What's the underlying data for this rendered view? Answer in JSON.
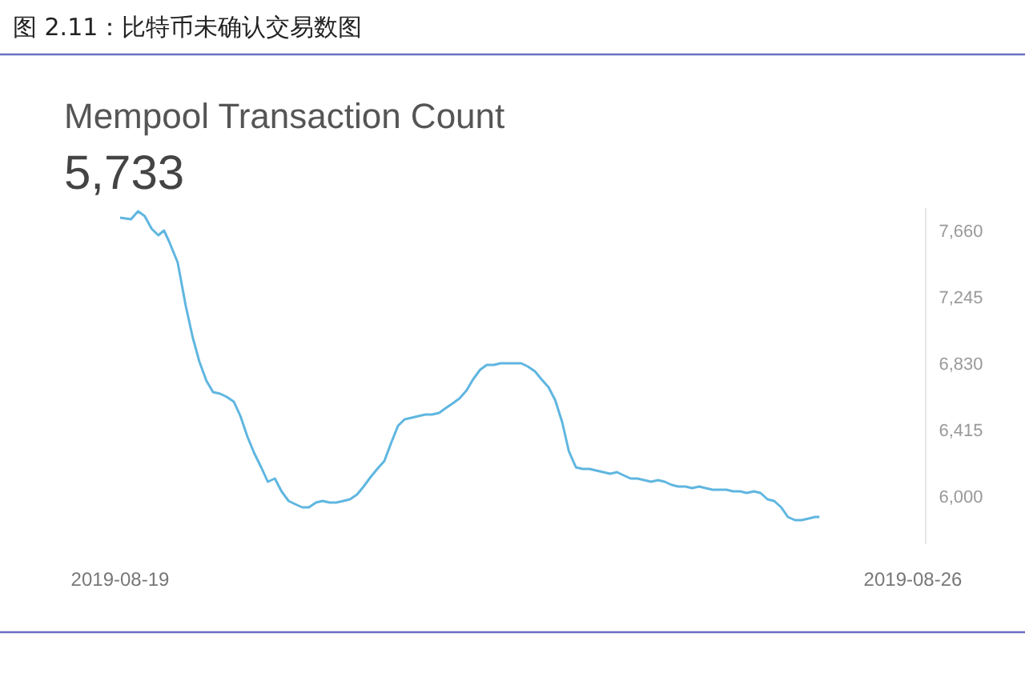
{
  "chart_data": {
    "type": "line",
    "title": "图 2.11：比特币未确认交易数图",
    "subtitle": "Mempool Transaction Count",
    "annotations": [
      "5,733"
    ],
    "xlim": [
      "2019-08-19",
      "2019-08-26"
    ],
    "xticks": [
      "2019-08-19",
      "2019-08-26"
    ],
    "ylim": [
      5700,
      7800
    ],
    "yticks": [
      {
        "value": 6000,
        "label": "6,000"
      },
      {
        "value": 6415,
        "label": "6,415"
      },
      {
        "value": 6830,
        "label": "6,830"
      },
      {
        "value": 7245,
        "label": "7,245"
      },
      {
        "value": 7660,
        "label": "7,660"
      }
    ],
    "grid": false,
    "series": [
      {
        "color": "#5fb6e0",
        "x": [
          "2019-08-19T00:00",
          "2019-08-19T02:18",
          "2019-08-19T03:48",
          "2019-08-19T05:12",
          "2019-08-19T06:42",
          "2019-08-19T08:06",
          "2019-08-19T09:18",
          "2019-08-19T10:24",
          "2019-08-19T12:12",
          "2019-08-19T13:54",
          "2019-08-19T15:24",
          "2019-08-19T16:48",
          "2019-08-19T18:18",
          "2019-08-19T19:42",
          "2019-08-19T21:12",
          "2019-08-19T22:36",
          "2019-08-20T00:06",
          "2019-08-20T01:30",
          "2019-08-20T03:00",
          "2019-08-20T04:24",
          "2019-08-20T05:54",
          "2019-08-20T07:18",
          "2019-08-20T08:48",
          "2019-08-20T10:12",
          "2019-08-20T11:42",
          "2019-08-20T13:06",
          "2019-08-20T14:36",
          "2019-08-20T16:00",
          "2019-08-20T17:30",
          "2019-08-20T18:54",
          "2019-08-20T20:24",
          "2019-08-20T21:48",
          "2019-08-20T23:18",
          "2019-08-21T00:42",
          "2019-08-21T02:12",
          "2019-08-21T03:36",
          "2019-08-21T05:06",
          "2019-08-21T06:30",
          "2019-08-21T08:00",
          "2019-08-21T09:24",
          "2019-08-21T10:54",
          "2019-08-21T12:18",
          "2019-08-21T13:48",
          "2019-08-21T15:12",
          "2019-08-21T16:42",
          "2019-08-21T18:06",
          "2019-08-21T19:36",
          "2019-08-21T21:00",
          "2019-08-21T22:30",
          "2019-08-21T23:54",
          "2019-08-22T01:24",
          "2019-08-22T02:48",
          "2019-08-22T04:18",
          "2019-08-22T05:42",
          "2019-08-22T07:12",
          "2019-08-22T08:36",
          "2019-08-22T10:06",
          "2019-08-22T11:30",
          "2019-08-22T13:00",
          "2019-08-22T14:24",
          "2019-08-22T15:54",
          "2019-08-22T17:18",
          "2019-08-22T18:48",
          "2019-08-22T20:12",
          "2019-08-22T21:42",
          "2019-08-22T23:06",
          "2019-08-23T00:36",
          "2019-08-23T02:00",
          "2019-08-23T03:30",
          "2019-08-23T04:54",
          "2019-08-23T06:24",
          "2019-08-23T07:48",
          "2019-08-23T09:18",
          "2019-08-23T10:42",
          "2019-08-23T12:12",
          "2019-08-23T13:36",
          "2019-08-23T15:06",
          "2019-08-23T16:30",
          "2019-08-23T18:00",
          "2019-08-23T19:24",
          "2019-08-23T20:54",
          "2019-08-23T22:18",
          "2019-08-23T23:48",
          "2019-08-24T01:12",
          "2019-08-24T02:42",
          "2019-08-24T04:06",
          "2019-08-24T05:36",
          "2019-08-24T07:00",
          "2019-08-24T08:30",
          "2019-08-24T09:54",
          "2019-08-24T11:24",
          "2019-08-24T12:48",
          "2019-08-24T14:18",
          "2019-08-24T15:42",
          "2019-08-24T17:12",
          "2019-08-24T18:36",
          "2019-08-24T20:06",
          "2019-08-24T21:30",
          "2019-08-24T23:00",
          "2019-08-25T00:24",
          "2019-08-25T01:54",
          "2019-08-25T03:18",
          "2019-08-25T04:12"
        ],
        "values": [
          7740,
          7730,
          7780,
          7750,
          7670,
          7630,
          7660,
          7590,
          7460,
          7190,
          6990,
          6840,
          6720,
          6650,
          6640,
          6620,
          6590,
          6500,
          6370,
          6270,
          6180,
          6090,
          6110,
          6030,
          5970,
          5950,
          5930,
          5930,
          5960,
          5970,
          5960,
          5960,
          5970,
          5980,
          6010,
          6060,
          6120,
          6170,
          6220,
          6330,
          6440,
          6480,
          6490,
          6500,
          6510,
          6510,
          6520,
          6550,
          6580,
          6610,
          6660,
          6730,
          6790,
          6820,
          6820,
          6830,
          6830,
          6830,
          6830,
          6810,
          6780,
          6730,
          6680,
          6600,
          6460,
          6280,
          6180,
          6170,
          6170,
          6160,
          6150,
          6140,
          6150,
          6130,
          6110,
          6110,
          6100,
          6090,
          6100,
          6090,
          6070,
          6060,
          6060,
          6050,
          6060,
          6050,
          6040,
          6040,
          6040,
          6030,
          6030,
          6020,
          6030,
          6020,
          5980,
          5970,
          5930,
          5870,
          5850,
          5850,
          5860,
          5870,
          5870
        ]
      }
    ]
  }
}
